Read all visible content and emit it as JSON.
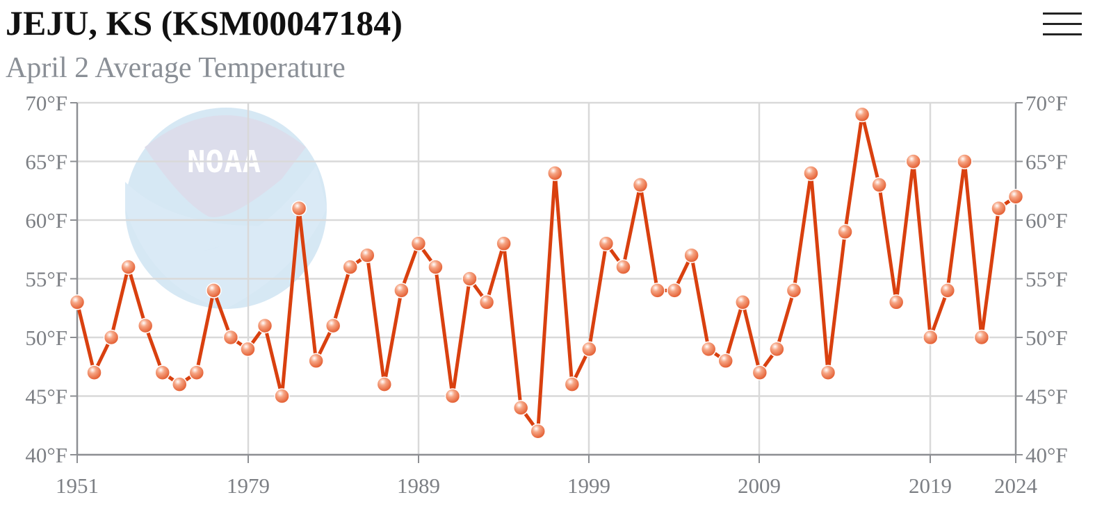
{
  "header": {
    "title": "JEJU, KS (KSM00047184)",
    "subtitle": "April 2 Average Temperature"
  },
  "menu_icon": "hamburger-menu-icon",
  "watermark": {
    "text": "NOAA"
  },
  "colors": {
    "line": "#d9400f",
    "marker": "#e8683e",
    "grid": "#d9d9d9",
    "axis": "#8d8f93",
    "watermark_circle": "#cfe4f3",
    "watermark_top": "#d6d8e8"
  },
  "chart_data": {
    "type": "line",
    "title": "April 2 Average Temperature",
    "y_unit": "°F",
    "ylim": [
      40,
      70
    ],
    "y_ticks": [
      40,
      45,
      50,
      55,
      60,
      65,
      70
    ],
    "y_tick_labels": [
      "40°F",
      "45°F",
      "50°F",
      "55°F",
      "60°F",
      "65°F",
      "70°F"
    ],
    "x_tick_labels": [
      "1951",
      "1979",
      "1989",
      "1999",
      "2009",
      "2019",
      "2024"
    ],
    "grid": true,
    "dual_y_axis": true,
    "series": [
      {
        "values": [
          53,
          47,
          50,
          56,
          51,
          47,
          46,
          47,
          54,
          50,
          49,
          51,
          45,
          61,
          48,
          51,
          56,
          57,
          46,
          54,
          58,
          56,
          45,
          55,
          53,
          58,
          44,
          42,
          64,
          46,
          49,
          58,
          56,
          63,
          54,
          54,
          57,
          49,
          48,
          53,
          47,
          49,
          54,
          64,
          47,
          59,
          69,
          63,
          53,
          65,
          50,
          54,
          65,
          50,
          61,
          62
        ]
      }
    ]
  }
}
